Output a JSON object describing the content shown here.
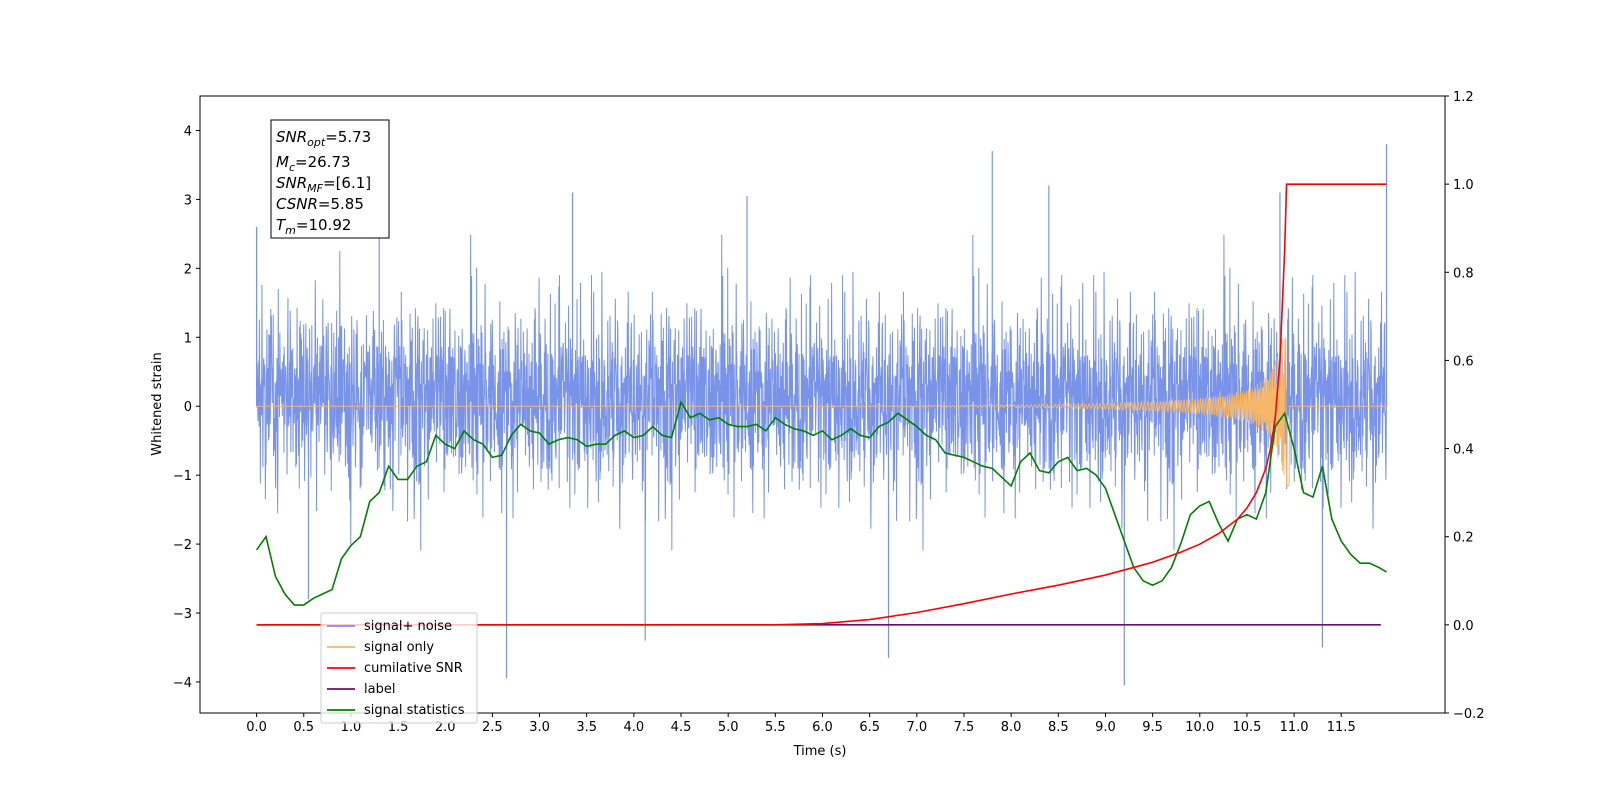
{
  "chart_data": {
    "type": "line",
    "xlabel": "Time (s)",
    "ylabel_left": "Whitened strain",
    "ylabel_right": "",
    "xlim": [
      -0.6,
      12.6
    ],
    "ylim_left": [
      -4.45,
      4.5
    ],
    "ylim_right": [
      -0.2,
      1.2
    ],
    "x_ticks": [
      "0.0",
      "0.5",
      "1.0",
      "1.5",
      "2.0",
      "2.5",
      "3.0",
      "3.5",
      "4.0",
      "4.5",
      "5.0",
      "5.5",
      "6.0",
      "6.5",
      "7.0",
      "7.5",
      "8.0",
      "8.5",
      "9.0",
      "9.5",
      "10.0",
      "10.5",
      "11.0",
      "11.5"
    ],
    "y_ticks_left": [
      "4",
      "3",
      "2",
      "1",
      "0",
      "−1",
      "−2",
      "−3",
      "−4"
    ],
    "y_ticks_right": [
      "1.2",
      "1.0",
      "0.8",
      "0.6",
      "0.4",
      "0.2",
      "0.0",
      "−0.2"
    ],
    "grid": false,
    "legend_position": "lower-left",
    "info_box": {
      "snr_opt": {
        "base": "SNR",
        "sub": "opt",
        "value": "=5.73"
      },
      "mc": {
        "base": "M",
        "sub": "c",
        "value": "=26.73"
      },
      "snr_mf": {
        "base": "SNR",
        "sub": "MF",
        "value": "=[6.1]"
      },
      "csnr": {
        "base": "CSNR",
        "value": "=5.85"
      },
      "tm": {
        "base": "T",
        "sub": "m",
        "value": "=10.92"
      }
    },
    "series": [
      {
        "name": "signal+ noise",
        "axis": "left",
        "color": "#7893e8",
        "description_values": "noise band, mean 0, roughly -2 to +2.5 with spikes to about 3.8 and -4.1",
        "spikes": [
          [
            0.0,
            2.6
          ],
          [
            2.65,
            -3.95
          ],
          [
            4.12,
            -3.4
          ],
          [
            6.7,
            -3.65
          ],
          [
            7.8,
            3.7
          ],
          [
            9.2,
            -4.05
          ],
          [
            11.3,
            -3.5
          ],
          [
            11.98,
            3.8
          ],
          [
            1.3,
            3.1
          ],
          [
            3.35,
            3.1
          ],
          [
            5.2,
            3.05
          ],
          [
            8.4,
            3.2
          ],
          [
            10.85,
            3.1
          ],
          [
            0.55,
            -2.8
          ]
        ]
      },
      {
        "name": "signal only",
        "axis": "left",
        "color": "#f5b76a",
        "chirp": {
          "start": 0.0,
          "merger": 10.92,
          "end": 11.98,
          "peak": -1.15
        }
      },
      {
        "name": "cumilative SNR",
        "axis": "right",
        "color": "#ff0000",
        "x": [
          0.0,
          5.0,
          5.5,
          6.0,
          6.5,
          7.0,
          7.5,
          8.0,
          8.5,
          9.0,
          9.5,
          9.8,
          10.0,
          10.2,
          10.4,
          10.5,
          10.6,
          10.7,
          10.75,
          10.8,
          10.85,
          10.88,
          10.9,
          10.92,
          10.95,
          11.98
        ],
        "values": [
          0.0,
          0.0,
          0.0,
          0.003,
          0.012,
          0.028,
          0.048,
          0.07,
          0.09,
          0.113,
          0.142,
          0.165,
          0.183,
          0.207,
          0.24,
          0.265,
          0.3,
          0.355,
          0.4,
          0.47,
          0.6,
          0.75,
          0.85,
          1.0,
          1.0,
          1.0
        ]
      },
      {
        "name": "label",
        "axis": "right",
        "color": "#6a0f6a",
        "x": [
          0.0,
          11.92
        ],
        "values": [
          0.0,
          0.0
        ]
      },
      {
        "name": "signal statistics",
        "axis": "right",
        "color": "#008000",
        "x": [
          0.0,
          0.1,
          0.2,
          0.3,
          0.4,
          0.5,
          0.6,
          0.7,
          0.8,
          0.9,
          1.0,
          1.1,
          1.2,
          1.3,
          1.4,
          1.5,
          1.6,
          1.7,
          1.8,
          1.9,
          2.0,
          2.1,
          2.2,
          2.3,
          2.4,
          2.5,
          2.6,
          2.7,
          2.8,
          2.9,
          3.0,
          3.1,
          3.2,
          3.3,
          3.4,
          3.5,
          3.6,
          3.7,
          3.8,
          3.9,
          4.0,
          4.1,
          4.2,
          4.3,
          4.4,
          4.5,
          4.6,
          4.7,
          4.8,
          4.9,
          5.0,
          5.1,
          5.2,
          5.3,
          5.4,
          5.5,
          5.6,
          5.7,
          5.8,
          5.9,
          6.0,
          6.1,
          6.2,
          6.3,
          6.4,
          6.5,
          6.6,
          6.7,
          6.8,
          6.9,
          7.0,
          7.1,
          7.2,
          7.3,
          7.4,
          7.5,
          7.6,
          7.7,
          7.8,
          7.9,
          8.0,
          8.1,
          8.2,
          8.3,
          8.4,
          8.5,
          8.6,
          8.7,
          8.8,
          8.9,
          9.0,
          9.1,
          9.2,
          9.3,
          9.4,
          9.5,
          9.6,
          9.7,
          9.8,
          9.9,
          10.0,
          10.1,
          10.2,
          10.3,
          10.4,
          10.5,
          10.6,
          10.7,
          10.8,
          10.9,
          11.0,
          11.1,
          11.2,
          11.3,
          11.4,
          11.5,
          11.6,
          11.7,
          11.8,
          11.9,
          11.98
        ],
        "values": [
          0.17,
          0.2,
          0.11,
          0.07,
          0.045,
          0.045,
          0.06,
          0.07,
          0.08,
          0.15,
          0.18,
          0.2,
          0.28,
          0.3,
          0.36,
          0.33,
          0.33,
          0.36,
          0.37,
          0.43,
          0.41,
          0.4,
          0.44,
          0.42,
          0.41,
          0.38,
          0.385,
          0.43,
          0.455,
          0.44,
          0.435,
          0.41,
          0.42,
          0.425,
          0.42,
          0.405,
          0.41,
          0.41,
          0.43,
          0.44,
          0.425,
          0.43,
          0.45,
          0.43,
          0.425,
          0.505,
          0.47,
          0.48,
          0.465,
          0.47,
          0.455,
          0.45,
          0.45,
          0.455,
          0.44,
          0.47,
          0.455,
          0.445,
          0.44,
          0.43,
          0.44,
          0.42,
          0.43,
          0.445,
          0.43,
          0.425,
          0.45,
          0.46,
          0.48,
          0.465,
          0.45,
          0.43,
          0.42,
          0.39,
          0.385,
          0.38,
          0.37,
          0.36,
          0.355,
          0.335,
          0.315,
          0.37,
          0.39,
          0.35,
          0.345,
          0.37,
          0.38,
          0.35,
          0.355,
          0.34,
          0.31,
          0.25,
          0.19,
          0.13,
          0.1,
          0.09,
          0.1,
          0.13,
          0.185,
          0.25,
          0.27,
          0.28,
          0.23,
          0.19,
          0.24,
          0.25,
          0.24,
          0.3,
          0.45,
          0.48,
          0.4,
          0.3,
          0.29,
          0.36,
          0.24,
          0.19,
          0.16,
          0.14,
          0.14,
          0.13,
          0.12
        ]
      }
    ]
  }
}
